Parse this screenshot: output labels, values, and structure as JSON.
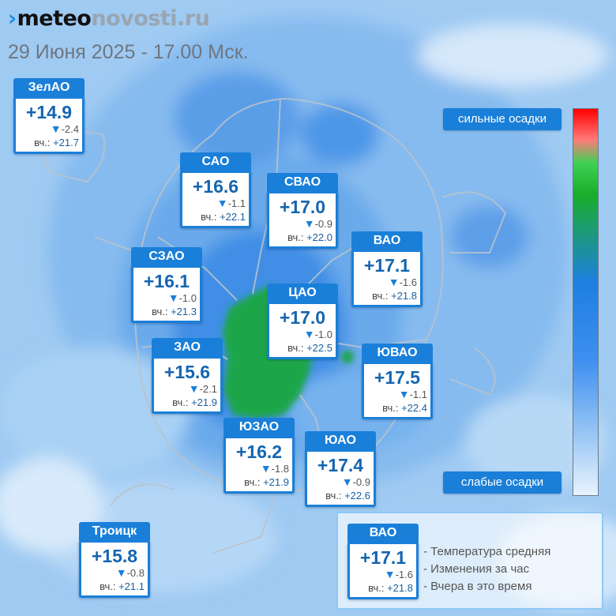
{
  "header": {
    "logo_part1": "meteo",
    "logo_part2": "novosti.ru",
    "datetime": "29 Июня 2025 - 17.00 Мск."
  },
  "colors": {
    "accent": "#1a7fd8",
    "heavy_precip": "#ff0000",
    "moderate_precip": "#1aae2a",
    "light_precip": "#e8f3fd"
  },
  "districts": [
    {
      "name": "ЗелАО",
      "temp": "+14.9",
      "change": "-2.4",
      "yesterday_label": "вч.:",
      "yesterday": "+21.7"
    },
    {
      "name": "САО",
      "temp": "+16.6",
      "change": "-1.1",
      "yesterday_label": "вч.:",
      "yesterday": "+22.1"
    },
    {
      "name": "СВАО",
      "temp": "+17.0",
      "change": "-0.9",
      "yesterday_label": "вч.:",
      "yesterday": "+22.0"
    },
    {
      "name": "ВАО",
      "temp": "+17.1",
      "change": "-1.6",
      "yesterday_label": "вч.:",
      "yesterday": "+21.8"
    },
    {
      "name": "СЗАО",
      "temp": "+16.1",
      "change": "-1.0",
      "yesterday_label": "вч.:",
      "yesterday": "+21.3"
    },
    {
      "name": "ЦАО",
      "temp": "+17.0",
      "change": "-1.0",
      "yesterday_label": "вч.:",
      "yesterday": "+22.5"
    },
    {
      "name": "ЗАО",
      "temp": "+15.6",
      "change": "-2.1",
      "yesterday_label": "вч.:",
      "yesterday": "+21.9"
    },
    {
      "name": "ЮВАО",
      "temp": "+17.5",
      "change": "-1.1",
      "yesterday_label": "вч.:",
      "yesterday": "+22.4"
    },
    {
      "name": "ЮЗАО",
      "temp": "+16.2",
      "change": "-1.8",
      "yesterday_label": "вч.:",
      "yesterday": "+21.9"
    },
    {
      "name": "ЮАО",
      "temp": "+17.4",
      "change": "-0.9",
      "yesterday_label": "вч.:",
      "yesterday": "+22.6"
    },
    {
      "name": "Троицк",
      "temp": "+15.8",
      "change": "-0.8",
      "yesterday_label": "вч.:",
      "yesterday": "+21.1"
    }
  ],
  "scale": {
    "top_label": "сильные осадки",
    "bottom_label": "слабые осадки"
  },
  "legend": {
    "example": {
      "name": "ВАО",
      "temp": "+17.1",
      "change": "-1.6",
      "yesterday_label": "вч.:",
      "yesterday": "+21.8"
    },
    "items": [
      "- Температура средняя",
      "- Изменения за час",
      "- Вчера в это время"
    ]
  }
}
